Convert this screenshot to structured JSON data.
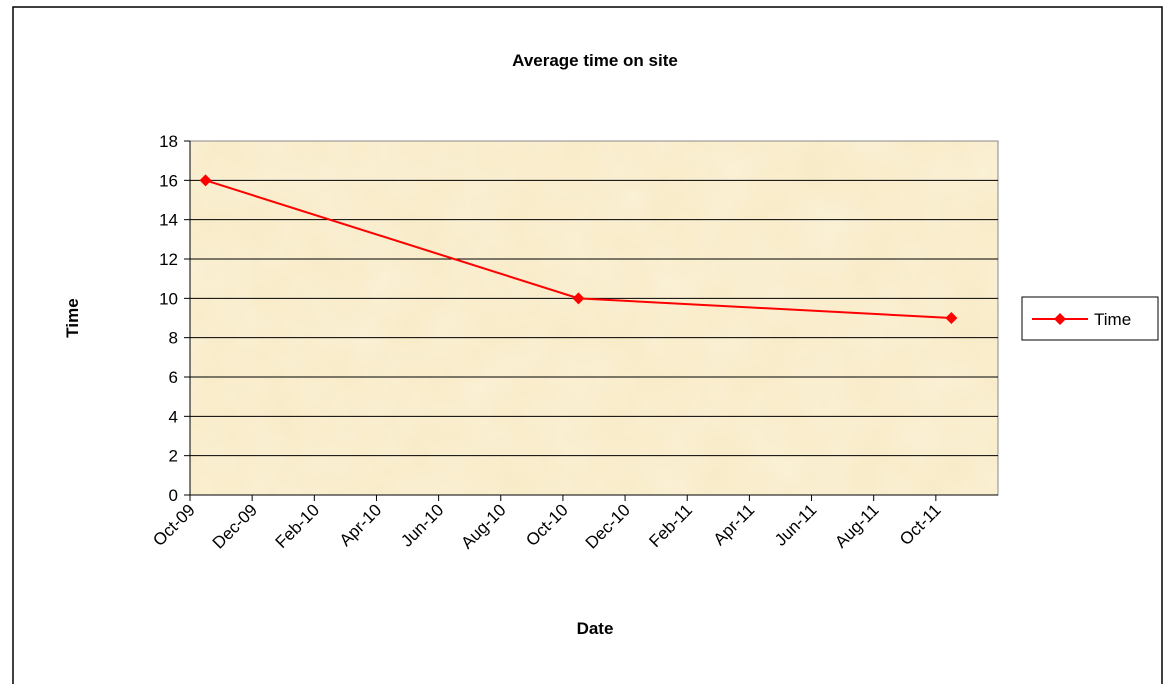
{
  "chart_data": {
    "type": "line",
    "title": "Average time on site",
    "x_label": "Date",
    "y_label": "Time",
    "x": [
      "Oct-09",
      "Oct-10",
      "Oct-11"
    ],
    "series": [
      {
        "name": "Time",
        "color": "#ff0000",
        "values": [
          16,
          10,
          9
        ]
      }
    ],
    "xlim": [
      "Oct-09",
      "Nov-11"
    ],
    "xticks": [
      "Oct-09",
      "Dec-09",
      "Feb-10",
      "Apr-10",
      "Jun-10",
      "Aug-10",
      "Oct-10",
      "Dec-10",
      "Feb-11",
      "Apr-11",
      "Jun-11",
      "Aug-11",
      "Oct-11"
    ],
    "ylim": [
      0,
      18
    ],
    "yticks": [
      0,
      2,
      4,
      6,
      8,
      10,
      12,
      14,
      16,
      18
    ],
    "grid": true,
    "legend": "right"
  }
}
